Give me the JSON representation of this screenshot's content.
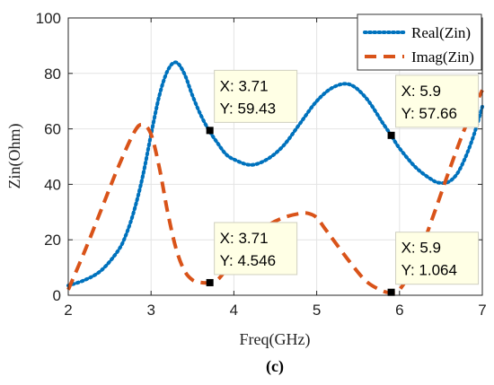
{
  "chart_data": {
    "type": "line",
    "xlabel": "Freq(GHz)",
    "ylabel": "Zin(Ohm)",
    "xlim": [
      2,
      7
    ],
    "ylim": [
      0,
      100
    ],
    "xticks": [
      "2",
      "3",
      "4",
      "5",
      "6",
      "7"
    ],
    "yticks": [
      "0",
      "20",
      "40",
      "60",
      "80",
      "100"
    ],
    "grid": true,
    "legend_position": "top-right",
    "series": [
      {
        "name": "Real(Zin)",
        "color": "#0072BD",
        "style": "dotted",
        "x": [
          2.0,
          2.2,
          2.4,
          2.6,
          2.7,
          2.8,
          2.9,
          3.0,
          3.1,
          3.2,
          3.3,
          3.4,
          3.5,
          3.6,
          3.7,
          3.8,
          3.9,
          4.0,
          4.2,
          4.4,
          4.6,
          4.8,
          5.0,
          5.2,
          5.4,
          5.6,
          5.8,
          5.9,
          6.0,
          6.2,
          6.4,
          6.5,
          6.6,
          6.7,
          6.8,
          6.9,
          7.0
        ],
        "y": [
          3.5,
          5.5,
          9,
          16,
          22,
          31,
          43,
          58,
          72,
          81,
          84,
          80,
          72,
          65,
          59.43,
          55,
          51,
          49,
          47,
          49,
          54,
          62,
          70,
          75,
          76,
          71,
          62,
          57.66,
          53,
          46,
          41.5,
          40.5,
          41,
          44,
          50,
          58,
          68
        ]
      },
      {
        "name": "Imag(Zin)",
        "color": "#D95319",
        "style": "dashed",
        "x": [
          2.0,
          2.2,
          2.4,
          2.6,
          2.8,
          2.9,
          3.0,
          3.1,
          3.2,
          3.3,
          3.4,
          3.5,
          3.6,
          3.7,
          3.8,
          3.9,
          4.0,
          4.2,
          4.4,
          4.6,
          4.8,
          4.9,
          5.0,
          5.1,
          5.2,
          5.4,
          5.6,
          5.8,
          5.9,
          6.0,
          6.2,
          6.4,
          6.6,
          6.8,
          7.0
        ],
        "y": [
          2,
          16,
          31,
          46,
          59,
          61.5,
          58,
          46,
          30,
          17,
          9,
          5.5,
          4.6,
          4.546,
          5.5,
          9,
          13,
          20,
          25,
          28,
          29.5,
          29.5,
          28,
          24,
          20,
          12,
          5,
          1.5,
          1.064,
          2,
          12,
          28,
          45,
          61,
          74
        ]
      }
    ],
    "datatips": [
      {
        "x_label": "X: 3.71",
        "y_label": "Y: 59.43",
        "x": 3.71,
        "y": 59.43
      },
      {
        "x_label": "X: 5.9",
        "y_label": "Y: 57.66",
        "x": 5.9,
        "y": 57.66
      },
      {
        "x_label": "X: 3.71",
        "y_label": "Y: 4.546",
        "x": 3.71,
        "y": 4.546
      },
      {
        "x_label": "X: 5.9",
        "y_label": "Y: 1.064",
        "x": 5.9,
        "y": 1.064
      }
    ]
  },
  "caption": "(c)"
}
